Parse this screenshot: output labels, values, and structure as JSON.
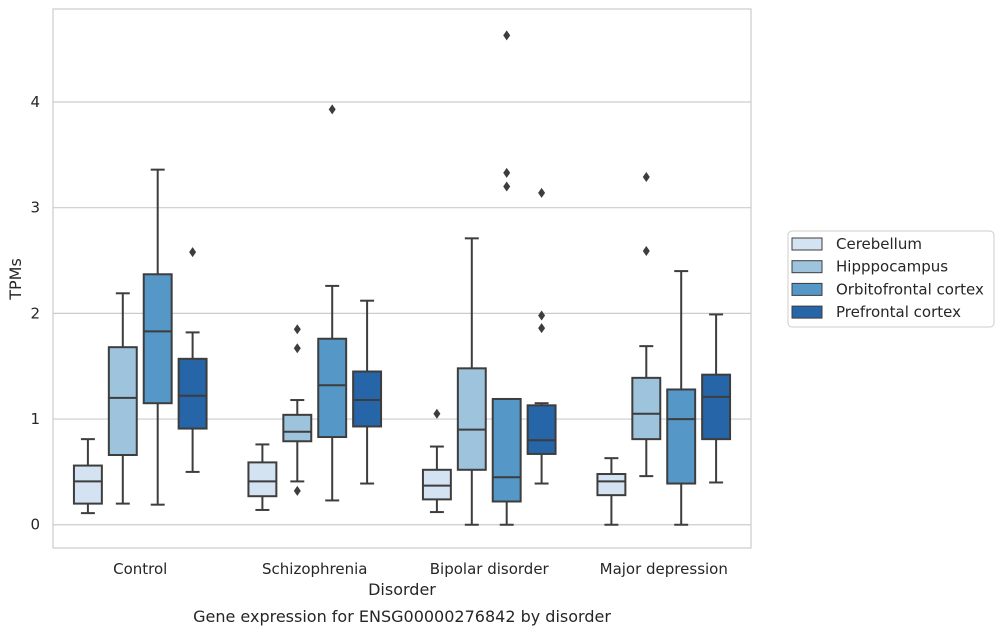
{
  "chart_data": {
    "type": "box",
    "caption": "Gene expression for ENSG00000276842 by disorder",
    "xlabel": "Disorder",
    "ylabel": "TPMs",
    "ylim": [
      -0.22,
      4.88
    ],
    "yticks": [
      0,
      1,
      2,
      3,
      4
    ],
    "grid": "horizontal",
    "legend_position": "right",
    "categories": [
      "Control",
      "Schizophrenia",
      "Bipolar disorder",
      "Major depression"
    ],
    "series": [
      {
        "name": "Cerebellum",
        "color": "#d4e3f2",
        "boxes": [
          {
            "whisker_low": 0.11,
            "q1": 0.2,
            "median": 0.41,
            "q3": 0.56,
            "whisker_high": 0.81,
            "outliers": []
          },
          {
            "whisker_low": 0.14,
            "q1": 0.27,
            "median": 0.41,
            "q3": 0.59,
            "whisker_high": 0.76,
            "outliers": []
          },
          {
            "whisker_low": 0.12,
            "q1": 0.24,
            "median": 0.37,
            "q3": 0.52,
            "whisker_high": 0.74,
            "outliers": [
              1.05
            ]
          },
          {
            "whisker_low": 0.0,
            "q1": 0.28,
            "median": 0.41,
            "q3": 0.48,
            "whisker_high": 0.63,
            "outliers": []
          }
        ]
      },
      {
        "name": "Hipppocampus",
        "color": "#9dc4dc",
        "boxes": [
          {
            "whisker_low": 0.2,
            "q1": 0.66,
            "median": 1.2,
            "q3": 1.68,
            "whisker_high": 2.19,
            "outliers": []
          },
          {
            "whisker_low": 0.41,
            "q1": 0.79,
            "median": 0.88,
            "q3": 1.04,
            "whisker_high": 1.18,
            "outliers": [
              1.85,
              1.67,
              0.32
            ]
          },
          {
            "whisker_low": 0.0,
            "q1": 0.52,
            "median": 0.9,
            "q3": 1.48,
            "whisker_high": 2.71,
            "outliers": []
          },
          {
            "whisker_low": 0.46,
            "q1": 0.81,
            "median": 1.05,
            "q3": 1.39,
            "whisker_high": 1.69,
            "outliers": [
              3.29,
              2.59
            ]
          }
        ]
      },
      {
        "name": "Orbitofrontal cortex",
        "color": "#5597c6",
        "boxes": [
          {
            "whisker_low": 0.19,
            "q1": 1.15,
            "median": 1.83,
            "q3": 2.37,
            "whisker_high": 3.36,
            "outliers": []
          },
          {
            "whisker_low": 0.23,
            "q1": 0.83,
            "median": 1.32,
            "q3": 1.76,
            "whisker_high": 2.26,
            "outliers": [
              3.93
            ]
          },
          {
            "whisker_low": 0.0,
            "q1": 0.22,
            "median": 0.45,
            "q3": 1.19,
            "whisker_high": 1.19,
            "outliers": [
              4.63,
              3.33,
              3.2
            ]
          },
          {
            "whisker_low": 0.0,
            "q1": 0.39,
            "median": 1.0,
            "q3": 1.28,
            "whisker_high": 2.4,
            "outliers": []
          }
        ]
      },
      {
        "name": "Prefrontal cortex",
        "color": "#2565a8",
        "boxes": [
          {
            "whisker_low": 0.5,
            "q1": 0.91,
            "median": 1.22,
            "q3": 1.57,
            "whisker_high": 1.82,
            "outliers": [
              2.58
            ]
          },
          {
            "whisker_low": 0.39,
            "q1": 0.93,
            "median": 1.18,
            "q3": 1.45,
            "whisker_high": 2.12,
            "outliers": []
          },
          {
            "whisker_low": 0.39,
            "q1": 0.67,
            "median": 0.8,
            "q3": 1.13,
            "whisker_high": 1.15,
            "outliers": [
              3.14,
              1.98,
              1.86
            ]
          },
          {
            "whisker_low": 0.4,
            "q1": 0.81,
            "median": 1.21,
            "q3": 1.42,
            "whisker_high": 1.99,
            "outliers": []
          }
        ]
      }
    ]
  }
}
